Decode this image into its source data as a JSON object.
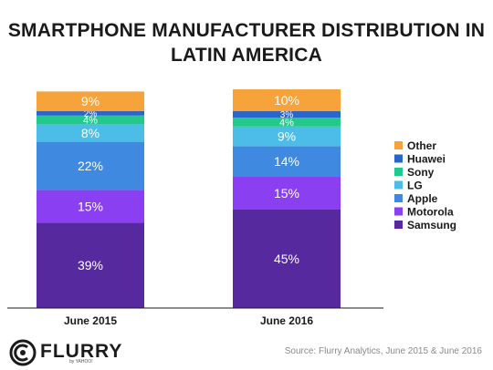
{
  "title_lines": [
    "SMARTPHONE MANUFACTURER DISTRIBUTION IN",
    "LATIN AMERICA"
  ],
  "footer": {
    "brand": "FLURRY",
    "brand_sub": "by YAHOO!",
    "source": "Source: Flurry Analytics, June 2015 & June 2016"
  },
  "chart_data": {
    "type": "bar",
    "stacked": true,
    "title": "SMARTPHONE MANUFACTURER DISTRIBUTION IN LATIN AMERICA",
    "categories": [
      "June 2015",
      "June 2016"
    ],
    "series": [
      {
        "name": "Samsung",
        "values": [
          39,
          45
        ],
        "color": "#56299f",
        "labels": [
          "39%",
          "45%"
        ]
      },
      {
        "name": " Motorola",
        "values": [
          15,
          15
        ],
        "color": "#8a3ff0",
        "labels": [
          "15%",
          "15%"
        ]
      },
      {
        "name": "Apple",
        "values": [
          22,
          14
        ],
        "color": "#3f8ae0",
        "labels": [
          "22%",
          "14%"
        ]
      },
      {
        "name": "LG",
        "values": [
          8,
          9
        ],
        "color": "#4cbde6",
        "labels": [
          "8%",
          "9%"
        ]
      },
      {
        "name": "Sony",
        "values": [
          4,
          4
        ],
        "color": "#22c98a",
        "labels": [
          "4%",
          "4%"
        ]
      },
      {
        "name": "Huawei",
        "values": [
          2,
          3
        ],
        "color": "#2a66c8",
        "labels": [
          "2%",
          "3%"
        ]
      },
      {
        "name": "Other",
        "values": [
          9,
          10
        ],
        "color": "#f5a33a",
        "labels": [
          "9%",
          "10%"
        ]
      }
    ],
    "legend_order": [
      "Other",
      "Huawei",
      "Sony",
      "LG",
      "Apple",
      " Motorola",
      "Samsung"
    ],
    "legend_position": "right",
    "ylim": [
      0,
      100
    ],
    "grid": false,
    "data_label_color": "#ffffff"
  }
}
